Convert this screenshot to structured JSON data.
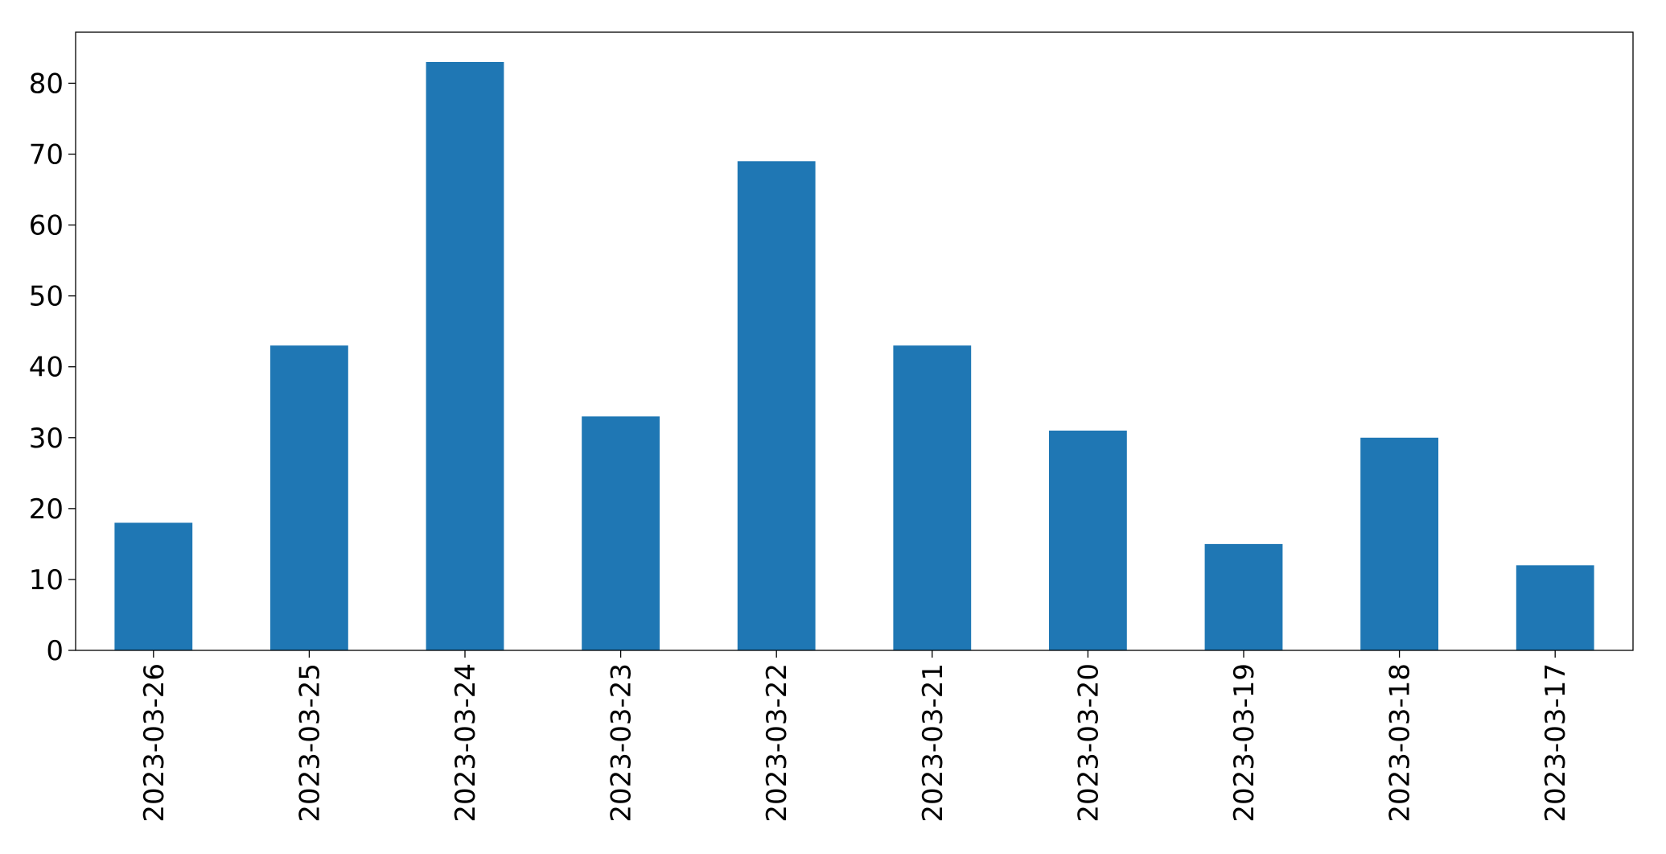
{
  "chart_data": {
    "type": "bar",
    "categories": [
      "2023-03-26",
      "2023-03-25",
      "2023-03-24",
      "2023-03-23",
      "2023-03-22",
      "2023-03-21",
      "2023-03-20",
      "2023-03-19",
      "2023-03-18",
      "2023-03-17"
    ],
    "values": [
      18,
      43,
      83,
      33,
      69,
      43,
      31,
      15,
      30,
      12
    ],
    "color": "#1f77b4",
    "ylim": [
      0,
      87.2
    ],
    "yticks": [
      0,
      10,
      20,
      30,
      40,
      50,
      60,
      70,
      80
    ],
    "grid": false
  }
}
